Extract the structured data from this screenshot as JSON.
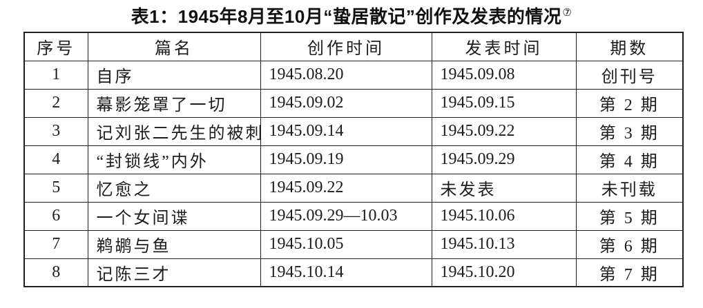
{
  "caption": {
    "text": "表1：1945年8月至10月“蛰居散记”创作及发表的情况",
    "footnote_marker": "⑦"
  },
  "table": {
    "headers": {
      "index": "序号",
      "title": "篇名",
      "created": "创作时间",
      "published": "发表时间",
      "issue": "期数"
    },
    "rows": [
      {
        "index": "1",
        "title": "自序",
        "created": "1945.08.20",
        "published": "1945.09.08",
        "issue": "创刊号"
      },
      {
        "index": "2",
        "title": "幕影笼罩了一切",
        "created": "1945.09.02",
        "published": "1945.09.15",
        "issue": "第 2 期"
      },
      {
        "index": "3",
        "title": "记刘张二先生的被刺",
        "created": "1945.09.14",
        "published": "1945.09.22",
        "issue": "第 3 期"
      },
      {
        "index": "4",
        "title": "“封锁线”内外",
        "created": "1945.09.19",
        "published": "1945.09.29",
        "issue": "第 4 期"
      },
      {
        "index": "5",
        "title": "忆愈之",
        "created": "1945.09.22",
        "published": "未发表",
        "issue": "未刊载"
      },
      {
        "index": "6",
        "title": "一个女间谍",
        "created": "1945.09.29—10.03",
        "published": "1945.10.06",
        "issue": "第 5 期"
      },
      {
        "index": "7",
        "title": "鹈鹕与鱼",
        "created": "1945.10.05",
        "published": "1945.10.13",
        "issue": "第 6 期"
      },
      {
        "index": "8",
        "title": "记陈三才",
        "created": "1945.10.14",
        "published": "1945.10.20",
        "issue": "第 7 期"
      }
    ]
  }
}
